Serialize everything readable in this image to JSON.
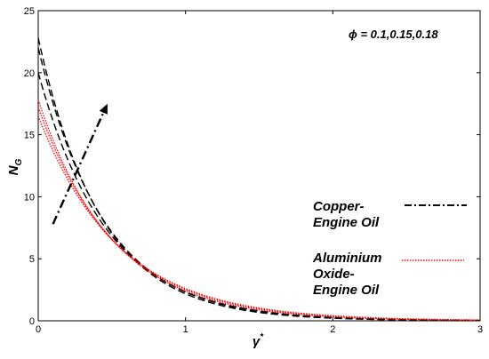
{
  "chart_data": {
    "type": "line",
    "title": "",
    "xlabel": "γ",
    "xlabel_sup": "*",
    "ylabel": "N",
    "ylabel_sub": "G",
    "xlim": [
      0,
      3
    ],
    "ylim": [
      0,
      25
    ],
    "xticks": [
      "0",
      "1",
      "2",
      "3"
    ],
    "yticks": [
      "0",
      "5",
      "10",
      "15",
      "20",
      "25"
    ],
    "grid": false,
    "annotation": "ϕ = 0.1,0.15,0.18",
    "legend": [
      {
        "lines": [
          "Copper-",
          "Engine Oil"
        ],
        "style": "dash-dot",
        "color": "#000000"
      },
      {
        "lines": [
          "Aluminium",
          "Oxide-",
          "Engine Oil"
        ],
        "style": "dotted",
        "color": "#ff0000"
      }
    ],
    "series": [
      {
        "group": "Copper-Engine Oil",
        "phi": 0.1,
        "color": "#000000",
        "style": "dashed",
        "y0": 20.0,
        "k": 2.15,
        "x": [
          0,
          0.25,
          0.5,
          0.75,
          1,
          1.5,
          2,
          2.5,
          3
        ],
        "y": [
          20.0,
          11.7,
          6.8,
          4.0,
          2.33,
          0.79,
          0.27,
          0.09,
          0.03
        ]
      },
      {
        "group": "Copper-Engine Oil",
        "phi": 0.15,
        "color": "#000000",
        "style": "dashed",
        "y0": 22.0,
        "k": 2.25,
        "x": [
          0,
          0.25,
          0.5,
          0.75,
          1,
          1.5,
          2,
          2.5,
          3
        ],
        "y": [
          22.0,
          12.5,
          7.1,
          4.1,
          2.32,
          0.75,
          0.24,
          0.08,
          0.03
        ]
      },
      {
        "group": "Copper-Engine Oil",
        "phi": 0.18,
        "color": "#000000",
        "style": "dashed",
        "y0": 22.8,
        "k": 2.35,
        "x": [
          0,
          0.25,
          0.5,
          0.75,
          1,
          1.5,
          2,
          2.5,
          3
        ],
        "y": [
          22.8,
          12.6,
          7.0,
          3.9,
          2.17,
          0.67,
          0.21,
          0.06,
          0.02
        ]
      },
      {
        "group": "Aluminium Oxide-Engine Oil",
        "phi": 0.1,
        "color": "#ff0000",
        "style": "dotted",
        "y0": 16.5,
        "k": 1.85,
        "x": [
          0,
          0.25,
          0.5,
          0.75,
          1,
          1.5,
          2,
          2.5,
          3
        ],
        "y": [
          16.5,
          10.4,
          6.5,
          4.1,
          2.6,
          1.03,
          0.41,
          0.16,
          0.06
        ]
      },
      {
        "group": "Aluminium Oxide-Engine Oil",
        "phi": 0.15,
        "color": "#ff0000",
        "style": "dotted",
        "y0": 17.2,
        "k": 1.92,
        "x": [
          0,
          0.25,
          0.5,
          0.75,
          1,
          1.5,
          2,
          2.5,
          3
        ],
        "y": [
          17.2,
          10.6,
          6.6,
          4.1,
          2.52,
          0.96,
          0.37,
          0.14,
          0.05
        ]
      },
      {
        "group": "Aluminium Oxide-Engine Oil",
        "phi": 0.18,
        "color": "#ff0000",
        "style": "dotted",
        "y0": 17.8,
        "k": 2.0,
        "x": [
          0,
          0.25,
          0.5,
          0.75,
          1,
          1.5,
          2,
          2.5,
          3
        ],
        "y": [
          17.8,
          10.8,
          6.6,
          4.0,
          2.41,
          0.89,
          0.33,
          0.12,
          0.04
        ]
      }
    ],
    "arrow": {
      "from": [
        0.1,
        7.8
      ],
      "to": [
        0.47,
        17.5
      ],
      "style": "dash-dot",
      "color": "#000000"
    }
  }
}
